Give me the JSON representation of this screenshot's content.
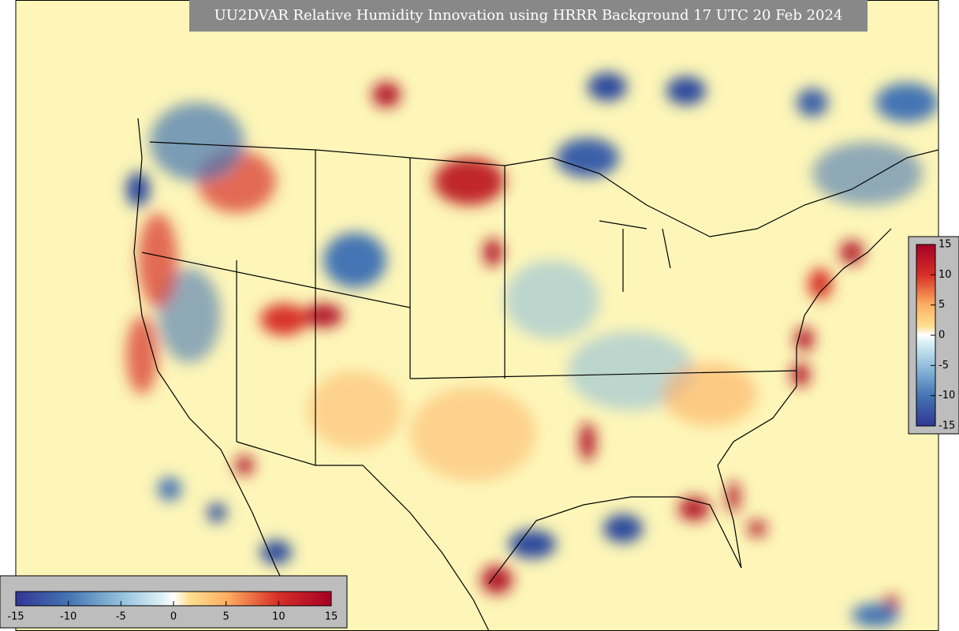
{
  "title": "UU2DVAR Relative Humidity Innovation using HRRR Background 17 UTC 20 Feb 2024",
  "colorbars": [
    {
      "orientation": "vertical",
      "range": [
        -15,
        15
      ],
      "ticks": [
        -15,
        -10,
        -5,
        0,
        5,
        10,
        15
      ]
    },
    {
      "orientation": "horizontal",
      "range": [
        -15,
        15
      ],
      "ticks": [
        -15,
        -10,
        -5,
        0,
        5,
        10,
        15
      ]
    }
  ]
}
